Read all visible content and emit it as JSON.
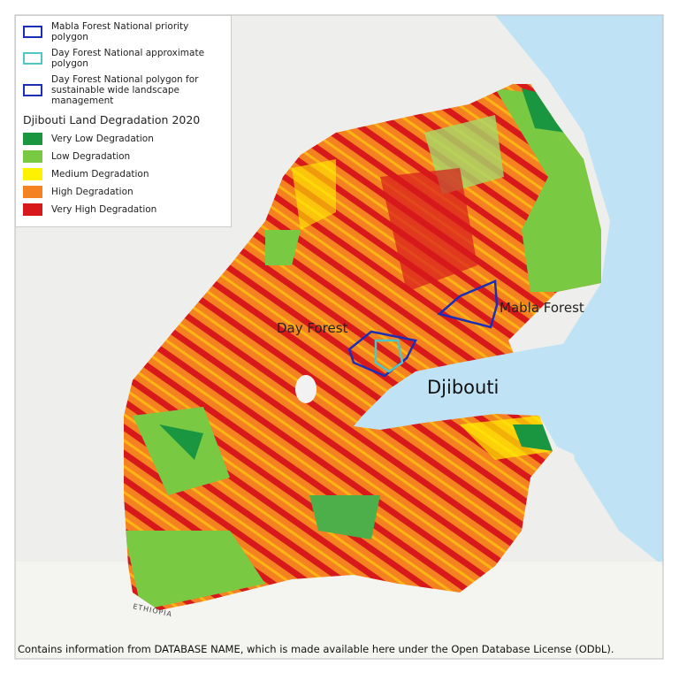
{
  "legend": {
    "boundaries": [
      "Mabla Forest National priority polygon",
      "Day Forest National approximate polygon",
      "Day Forest National polygon for sustainable wide landscape management"
    ],
    "title": "Djibouti Land Degradation 2020",
    "classes": [
      "Very Low Degradation",
      "Low Degradation",
      "Medium Degradation",
      "High Degradation",
      "Very High Degradation"
    ]
  },
  "labels": {
    "mabla": "Mabla Forest",
    "day": "Day Forest",
    "country": "Djibouti",
    "neighbor": "ETHIOPIA"
  },
  "attribution": "Contains information from DATABASE NAME, which is made available here under the Open Database License (ODbL)."
}
